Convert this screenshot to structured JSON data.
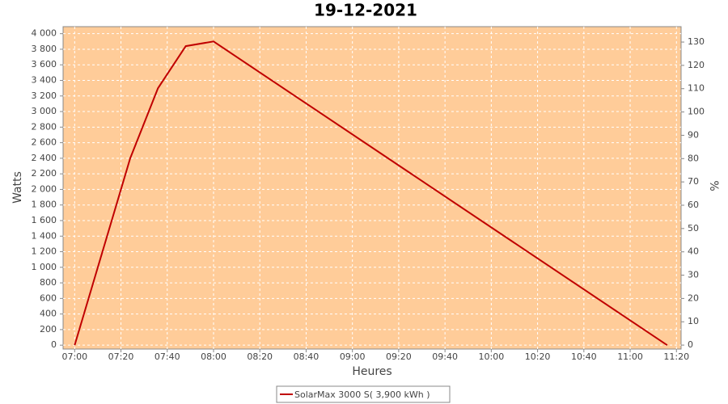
{
  "chart_data": {
    "type": "line",
    "title": "19-12-2021",
    "x_label": "Heures",
    "y_label": "Watts",
    "y2_label": "%",
    "x": [
      "07:00",
      "07:12",
      "07:24",
      "07:36",
      "07:48",
      "08:00",
      "11:16"
    ],
    "series": [
      {
        "name": "SolarMax 3000 S( 3,900 kWh )",
        "color": "#c00000",
        "values": [
          0,
          1200,
          2400,
          3300,
          3840,
          3900,
          0
        ]
      }
    ],
    "xlim": [
      "06:55",
      "11:22"
    ],
    "xticks": [
      "07:00",
      "07:20",
      "07:40",
      "08:00",
      "08:20",
      "08:40",
      "09:00",
      "09:20",
      "09:40",
      "10:00",
      "10:20",
      "10:40",
      "11:00",
      "11:20"
    ],
    "ylim": [
      -50,
      4090
    ],
    "yticks": [
      0,
      200,
      400,
      600,
      800,
      {
        "value": 1000,
        "label": "1 000"
      },
      {
        "value": 1200,
        "label": "1 200"
      },
      {
        "value": 1400,
        "label": "1 400"
      },
      {
        "value": 1600,
        "label": "1 600"
      },
      {
        "value": 1800,
        "label": "1 800"
      },
      {
        "value": 2000,
        "label": "2 000"
      },
      {
        "value": 2200,
        "label": "2 200"
      },
      {
        "value": 2400,
        "label": "2 400"
      },
      {
        "value": 2600,
        "label": "2 600"
      },
      {
        "value": 2800,
        "label": "2 800"
      },
      {
        "value": 3000,
        "label": "3 000"
      },
      {
        "value": 3200,
        "label": "3 200"
      },
      {
        "value": 3400,
        "label": "3 400"
      },
      {
        "value": 3600,
        "label": "3 600"
      },
      {
        "value": 3800,
        "label": "3 800"
      },
      {
        "value": 4000,
        "label": "4 000"
      }
    ],
    "y2lim": [
      -1.7,
      136.6
    ],
    "y2ticks": [
      0,
      10,
      20,
      30,
      40,
      50,
      60,
      70,
      80,
      90,
      100,
      110,
      120,
      130
    ],
    "grid": true,
    "background": "#ffcc99",
    "legend": "bottom"
  }
}
